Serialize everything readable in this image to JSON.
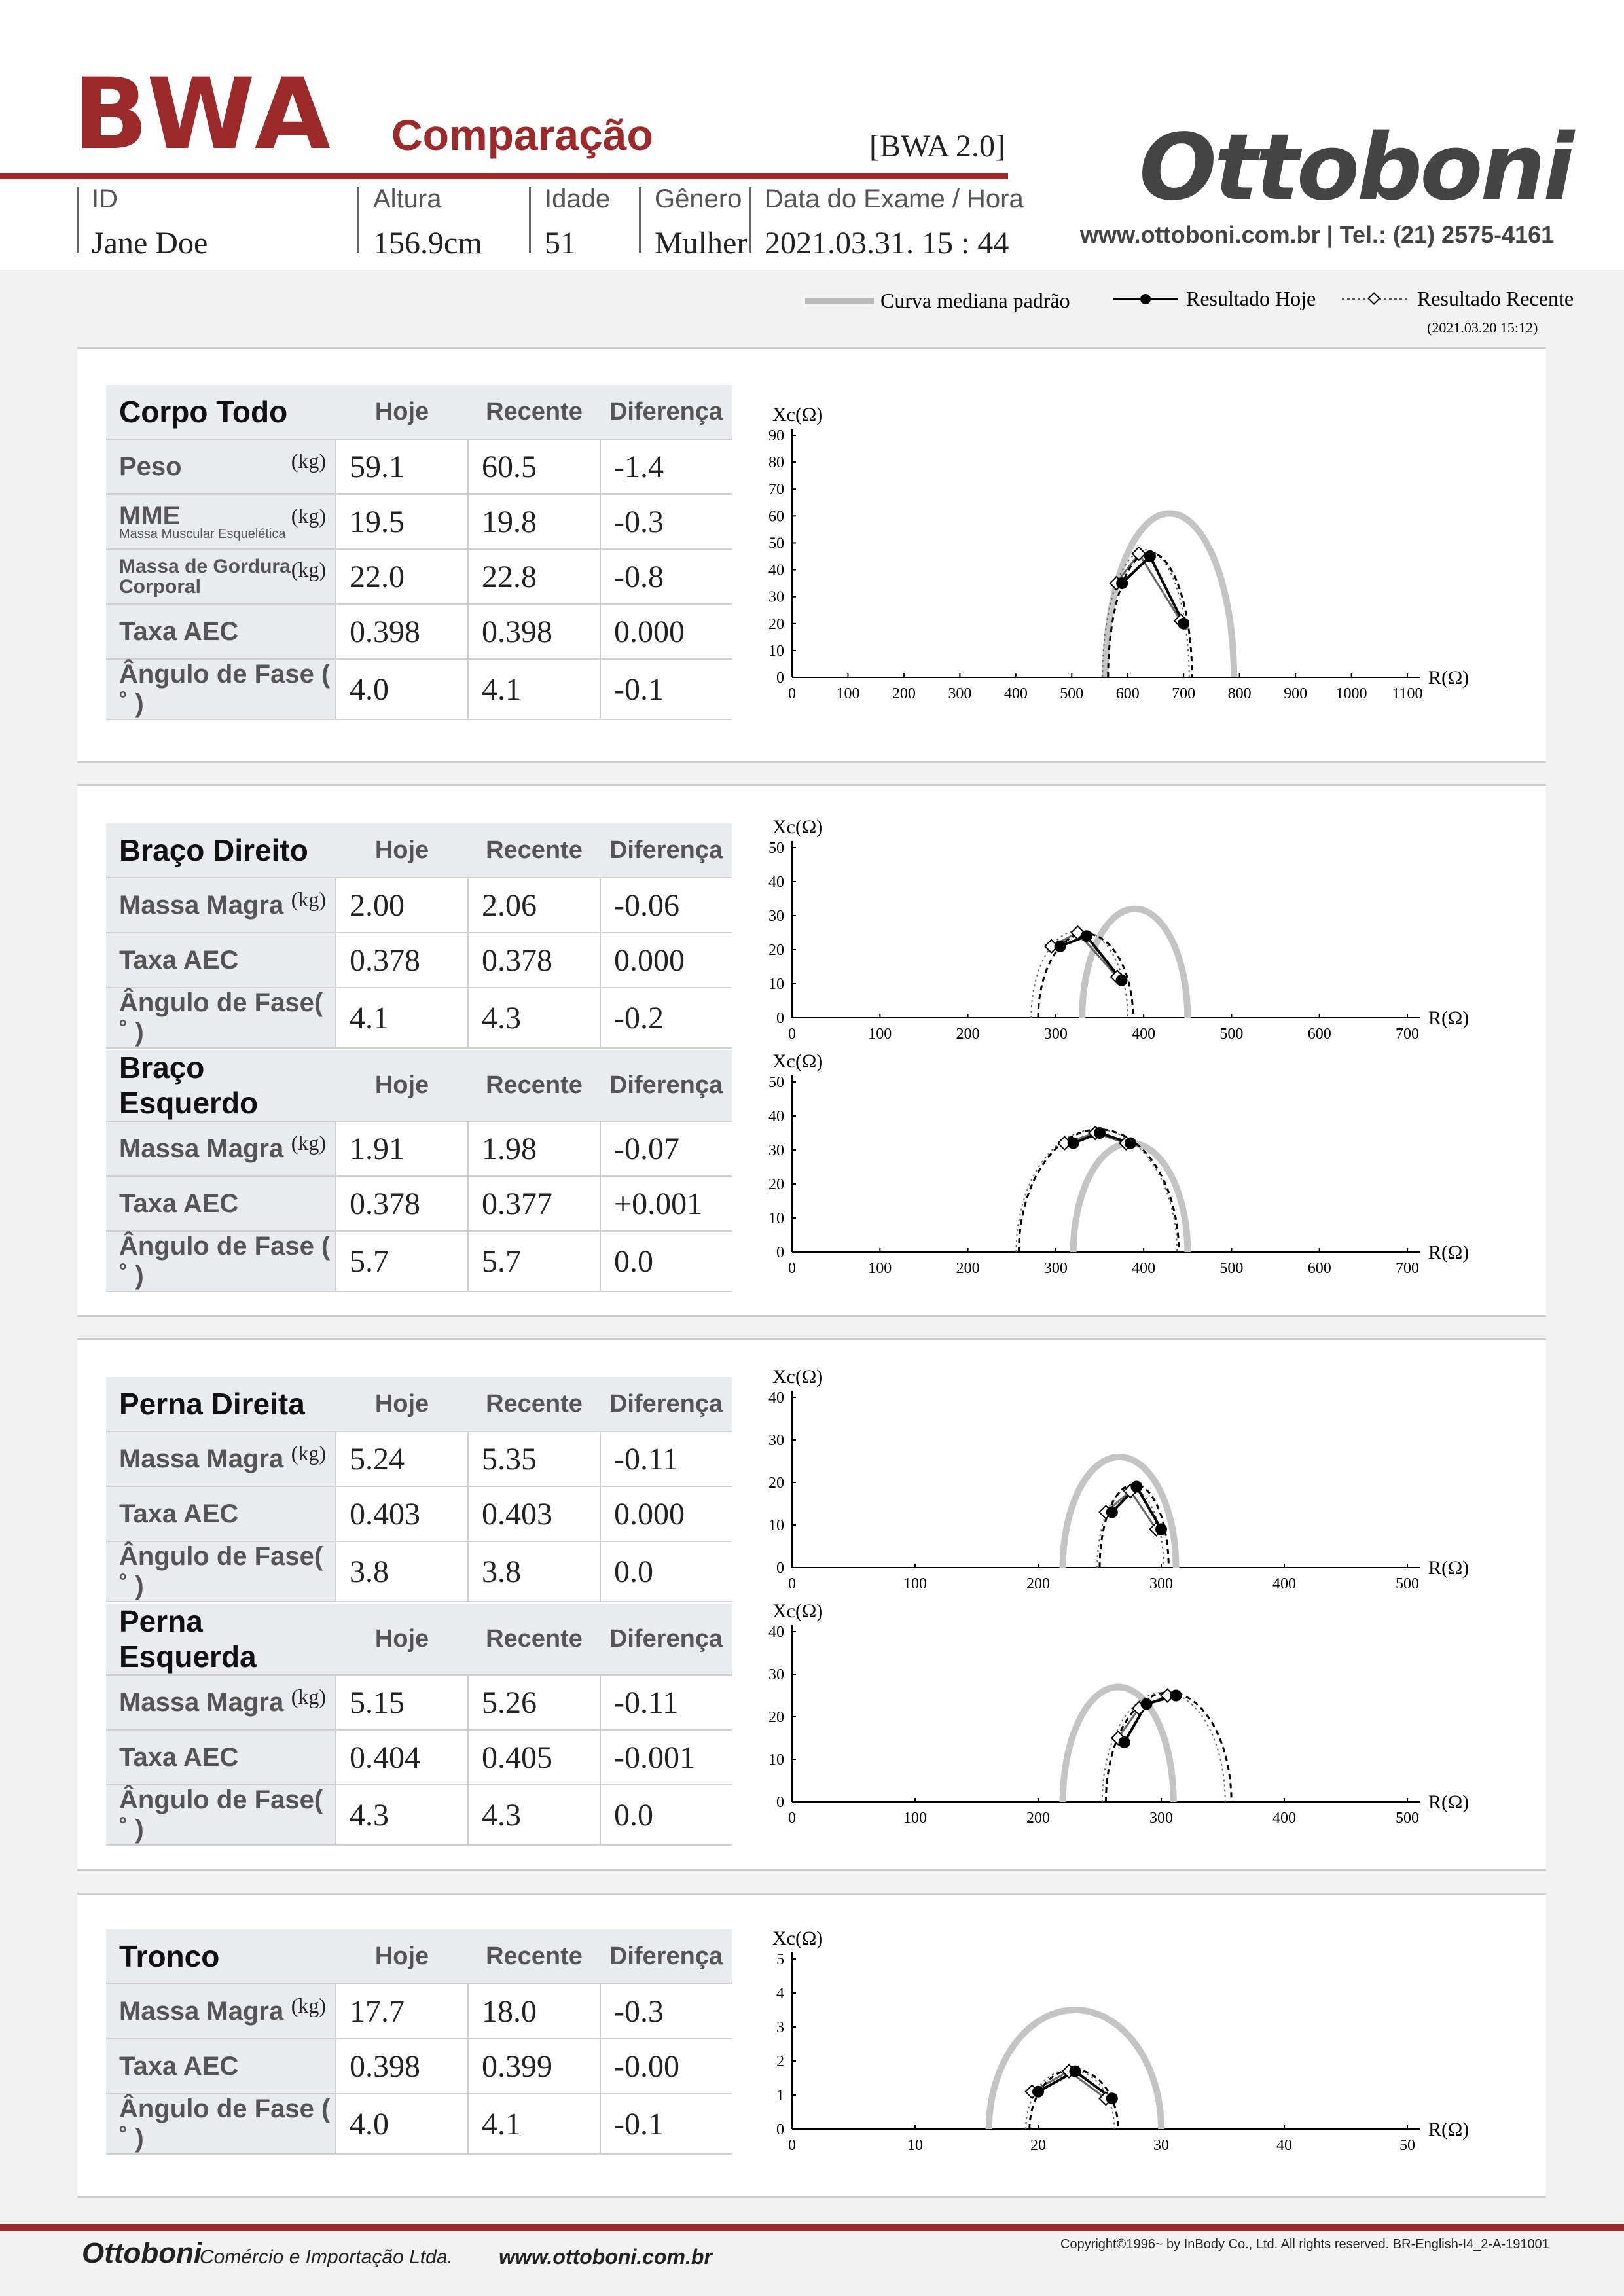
{
  "header": {
    "logo": "BWA",
    "subtitle": "Comparação",
    "version": "[BWA 2.0]",
    "brand": "Ottoboni",
    "contact": "www.ottoboni.com.br | Tel.: (21) 2575-4161",
    "fields": [
      {
        "label": "ID",
        "value": "Jane Doe"
      },
      {
        "label": "Altura",
        "value": "156.9cm"
      },
      {
        "label": "Idade",
        "value": "51"
      },
      {
        "label": "Gênero",
        "value": "Mulher"
      },
      {
        "label": "Data do Exame / Hora",
        "value": "2021.03.31. 15 : 44"
      }
    ]
  },
  "legend": {
    "standard": "Curva mediana padrão",
    "today": "Resultado Hoje",
    "recent": "Resultado Recente",
    "recent_date": "(2021.03.20 15:12)"
  },
  "columns": {
    "today": "Hoje",
    "recent": "Recente",
    "diff": "Diferença"
  },
  "sections": {
    "corpo": {
      "title": "Corpo Todo",
      "rows": [
        {
          "label": "Peso",
          "unit": "(kg)",
          "today": "59.1",
          "recent": "60.5",
          "diff": "-1.4"
        },
        {
          "label": "MME",
          "sublabel": "Massa Muscular Esquelética",
          "unit": "(kg)",
          "today": "19.5",
          "recent": "19.8",
          "diff": "-0.3"
        },
        {
          "label": "Massa de Gordura Corporal",
          "unit": "(kg)",
          "today": "22.0",
          "recent": "22.8",
          "diff": "-0.8"
        },
        {
          "label": "Taxa AEC",
          "unit": "",
          "today": "0.398",
          "recent": "0.398",
          "diff": "0.000"
        },
        {
          "label": "Ângulo de Fase ( ˚ )",
          "unit": "",
          "today": "4.0",
          "recent": "4.1",
          "diff": "-0.1"
        }
      ]
    },
    "braco_direito": {
      "title": "Braço Direito",
      "rows": [
        {
          "label": "Massa Magra",
          "unit": "(kg)",
          "today": "2.00",
          "recent": "2.06",
          "diff": "-0.06"
        },
        {
          "label": "Taxa AEC",
          "unit": "",
          "today": "0.378",
          "recent": "0.378",
          "diff": "0.000"
        },
        {
          "label": "Ângulo de Fase( ˚ )",
          "unit": "",
          "today": "4.1",
          "recent": "4.3",
          "diff": "-0.2"
        }
      ]
    },
    "braco_esquerdo": {
      "title": "Braço Esquerdo",
      "rows": [
        {
          "label": "Massa Magra",
          "unit": "(kg)",
          "today": "1.91",
          "recent": "1.98",
          "diff": "-0.07"
        },
        {
          "label": "Taxa AEC",
          "unit": "",
          "today": "0.378",
          "recent": "0.377",
          "diff": "+0.001"
        },
        {
          "label": "Ângulo de Fase ( ˚ )",
          "unit": "",
          "today": "5.7",
          "recent": "5.7",
          "diff": "0.0"
        }
      ]
    },
    "perna_direita": {
      "title": "Perna Direita",
      "rows": [
        {
          "label": "Massa Magra",
          "unit": "(kg)",
          "today": "5.24",
          "recent": "5.35",
          "diff": "-0.11"
        },
        {
          "label": "Taxa AEC",
          "unit": "",
          "today": "0.403",
          "recent": "0.403",
          "diff": "0.000"
        },
        {
          "label": "Ângulo de Fase( ˚ )",
          "unit": "",
          "today": "3.8",
          "recent": "3.8",
          "diff": "0.0"
        }
      ]
    },
    "perna_esquerda": {
      "title": "Perna Esquerda",
      "rows": [
        {
          "label": "Massa Magra",
          "unit": "(kg)",
          "today": "5.15",
          "recent": "5.26",
          "diff": "-0.11"
        },
        {
          "label": "Taxa AEC",
          "unit": "",
          "today": "0.404",
          "recent": "0.405",
          "diff": "-0.001"
        },
        {
          "label": "Ângulo de Fase( ˚ )",
          "unit": "",
          "today": "4.3",
          "recent": "4.3",
          "diff": "0.0"
        }
      ]
    },
    "tronco": {
      "title": "Tronco",
      "rows": [
        {
          "label": "Massa Magra",
          "unit": "(kg)",
          "today": "17.7",
          "recent": "18.0",
          "diff": "-0.3"
        },
        {
          "label": "Taxa AEC",
          "unit": "",
          "today": "0.398",
          "recent": "0.399",
          "diff": "-0.00"
        },
        {
          "label": "Ângulo de Fase ( ˚ )",
          "unit": "",
          "today": "4.0",
          "recent": "4.1",
          "diff": "-0.1"
        }
      ]
    }
  },
  "chart_data": [
    {
      "id": "corpo",
      "type": "scatter",
      "ylabel": "Xc(Ω)",
      "xlabel": "R(Ω)",
      "xlim": [
        0,
        1100
      ],
      "ylim": [
        0,
        90
      ],
      "xticks": [
        0,
        100,
        200,
        300,
        400,
        500,
        600,
        700,
        800,
        900,
        1000,
        1100
      ],
      "yticks": [
        0,
        10,
        20,
        30,
        40,
        50,
        60,
        70,
        80,
        90
      ],
      "standard": {
        "r_min": 560,
        "r_max": 790,
        "peak": 61
      },
      "today": {
        "points": [
          [
            590,
            35
          ],
          [
            640,
            45
          ],
          [
            700,
            20
          ]
        ],
        "r_min": 565,
        "r_max": 715
      },
      "recent": {
        "points": [
          [
            580,
            35
          ],
          [
            620,
            46
          ],
          [
            695,
            21
          ]
        ],
        "r_min": 555,
        "r_max": 710
      }
    },
    {
      "id": "braco_direito",
      "type": "scatter",
      "ylabel": "Xc(Ω)",
      "xlabel": "R(Ω)",
      "xlim": [
        0,
        700
      ],
      "ylim": [
        0,
        50
      ],
      "xticks": [
        0,
        100,
        200,
        300,
        400,
        500,
        600,
        700
      ],
      "yticks": [
        0,
        10,
        20,
        30,
        40,
        50
      ],
      "standard": {
        "r_min": 330,
        "r_max": 450,
        "peak": 32
      },
      "today": {
        "points": [
          [
            305,
            21
          ],
          [
            335,
            24
          ],
          [
            375,
            11
          ]
        ],
        "r_min": 280,
        "r_max": 388
      },
      "recent": {
        "points": [
          [
            295,
            21
          ],
          [
            325,
            25
          ],
          [
            370,
            12
          ]
        ],
        "r_min": 272,
        "r_max": 382
      }
    },
    {
      "id": "braco_esquerdo",
      "type": "scatter",
      "ylabel": "Xc(Ω)",
      "xlabel": "R(Ω)",
      "xlim": [
        0,
        700
      ],
      "ylim": [
        0,
        50
      ],
      "xticks": [
        0,
        100,
        200,
        300,
        400,
        500,
        600,
        700
      ],
      "yticks": [
        0,
        10,
        20,
        30,
        40,
        50
      ],
      "standard": {
        "r_min": 320,
        "r_max": 450,
        "peak": 32
      },
      "today": {
        "points": [
          [
            320,
            32
          ],
          [
            350,
            35
          ],
          [
            385,
            32
          ]
        ],
        "r_min": 258,
        "r_max": 440
      },
      "recent": {
        "points": [
          [
            310,
            32
          ],
          [
            345,
            35
          ],
          [
            380,
            32
          ]
        ],
        "r_min": 255,
        "r_max": 438
      }
    },
    {
      "id": "perna_direita",
      "type": "scatter",
      "ylabel": "Xc(Ω)",
      "xlabel": "R(Ω)",
      "xlim": [
        0,
        500
      ],
      "ylim": [
        0,
        40
      ],
      "xticks": [
        0,
        100,
        200,
        300,
        400,
        500
      ],
      "yticks": [
        0,
        10,
        20,
        30,
        40
      ],
      "standard": {
        "r_min": 220,
        "r_max": 312,
        "peak": 26
      },
      "today": {
        "points": [
          [
            260,
            13
          ],
          [
            280,
            19
          ],
          [
            300,
            9
          ]
        ],
        "r_min": 250,
        "r_max": 306
      },
      "recent": {
        "points": [
          [
            255,
            13
          ],
          [
            275,
            18
          ],
          [
            296,
            9
          ]
        ],
        "r_min": 248,
        "r_max": 302
      }
    },
    {
      "id": "perna_esquerda",
      "type": "scatter",
      "ylabel": "Xc(Ω)",
      "xlabel": "R(Ω)",
      "xlim": [
        0,
        500
      ],
      "ylim": [
        0,
        40
      ],
      "xticks": [
        0,
        100,
        200,
        300,
        400,
        500
      ],
      "yticks": [
        0,
        10,
        20,
        30,
        40
      ],
      "standard": {
        "r_min": 220,
        "r_max": 310,
        "peak": 27
      },
      "today": {
        "points": [
          [
            270,
            14
          ],
          [
            288,
            23
          ],
          [
            312,
            25
          ]
        ],
        "r_min": 255,
        "r_max": 357
      },
      "recent": {
        "points": [
          [
            265,
            15
          ],
          [
            282,
            22
          ],
          [
            305,
            25
          ]
        ],
        "r_min": 252,
        "r_max": 352
      }
    },
    {
      "id": "tronco",
      "type": "scatter",
      "ylabel": "Xc(Ω)",
      "xlabel": "R(Ω)",
      "xlim": [
        0,
        50
      ],
      "ylim": [
        0,
        5
      ],
      "xticks": [
        0,
        10,
        20,
        30,
        40,
        50
      ],
      "yticks": [
        0,
        1,
        2,
        3,
        4,
        5
      ],
      "standard": {
        "r_min": 16,
        "r_max": 30,
        "peak": 3.5
      },
      "today": {
        "points": [
          [
            20,
            1.1
          ],
          [
            23,
            1.7
          ],
          [
            26,
            0.9
          ]
        ],
        "r_min": 19.3,
        "r_max": 26.5
      },
      "recent": {
        "points": [
          [
            19.5,
            1.1
          ],
          [
            22.5,
            1.7
          ],
          [
            25.5,
            0.9
          ]
        ],
        "r_min": 19,
        "r_max": 26.2
      }
    }
  ],
  "footer": {
    "company": "Ottoboni",
    "company_sub": "Comércio e Importação Ltda.",
    "site": "www.ottoboni.com.br",
    "copyright": "Copyright©1996~ by InBody Co., Ltd. All rights reserved. BR-English-I4_2-A-191001"
  }
}
